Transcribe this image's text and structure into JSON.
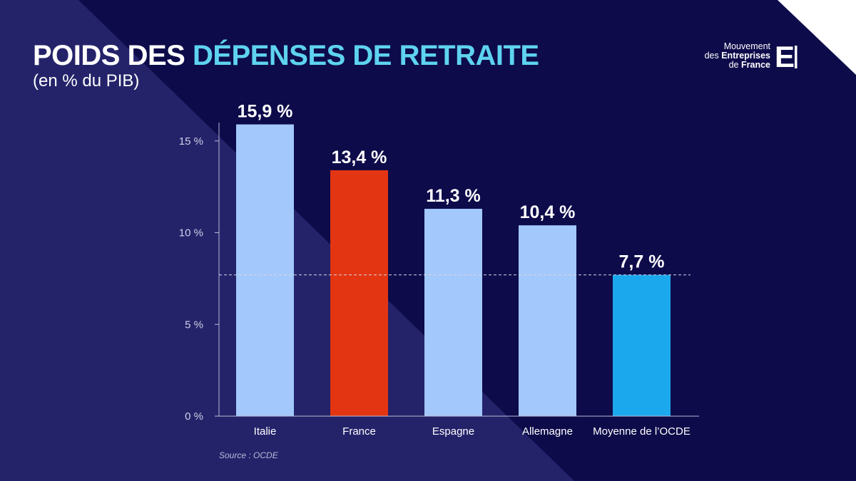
{
  "header": {
    "title_part1": "POIDS DES ",
    "title_part2": "DÉPENSES DE RETRAITE",
    "subtitle": "(en % du PIB)"
  },
  "logo": {
    "line1": "Mouvement",
    "line2a": "des ",
    "line2b": "Entreprises",
    "line3a": "de ",
    "line3b": "France",
    "mark": "E"
  },
  "source": "Source : OCDE",
  "colors": {
    "background_dark": "#0d0b4a",
    "background_light": "#24236a",
    "bar_default": "#a3c8fb",
    "bar_france": "#e33512",
    "bar_oecd": "#1ca8ec",
    "title_highlight": "#5ed3ef"
  },
  "chart_data": {
    "type": "bar",
    "title": "POIDS DES DÉPENSES DE RETRAITE",
    "ylabel": "(en % du PIB)",
    "xlabel": "",
    "categories": [
      "Italie",
      "France",
      "Espagne",
      "Allemagne",
      "Moyenne de l’OCDE"
    ],
    "values": [
      15.9,
      13.4,
      11.3,
      10.4,
      7.7
    ],
    "value_labels": [
      "15,9 %",
      "13,4 %",
      "11,3 %",
      "10,4 %",
      "7,7 %"
    ],
    "bar_colors": [
      "#a3c8fb",
      "#e33512",
      "#a3c8fb",
      "#a3c8fb",
      "#1ca8ec"
    ],
    "yticks": [
      0,
      5,
      10,
      15
    ],
    "ytick_labels": [
      "0 %",
      "5 %",
      "10 %",
      "15 %"
    ],
    "ylim": [
      0,
      15.9
    ],
    "reference_line": {
      "value": 7.7,
      "style": "dashed"
    },
    "grid": false
  }
}
